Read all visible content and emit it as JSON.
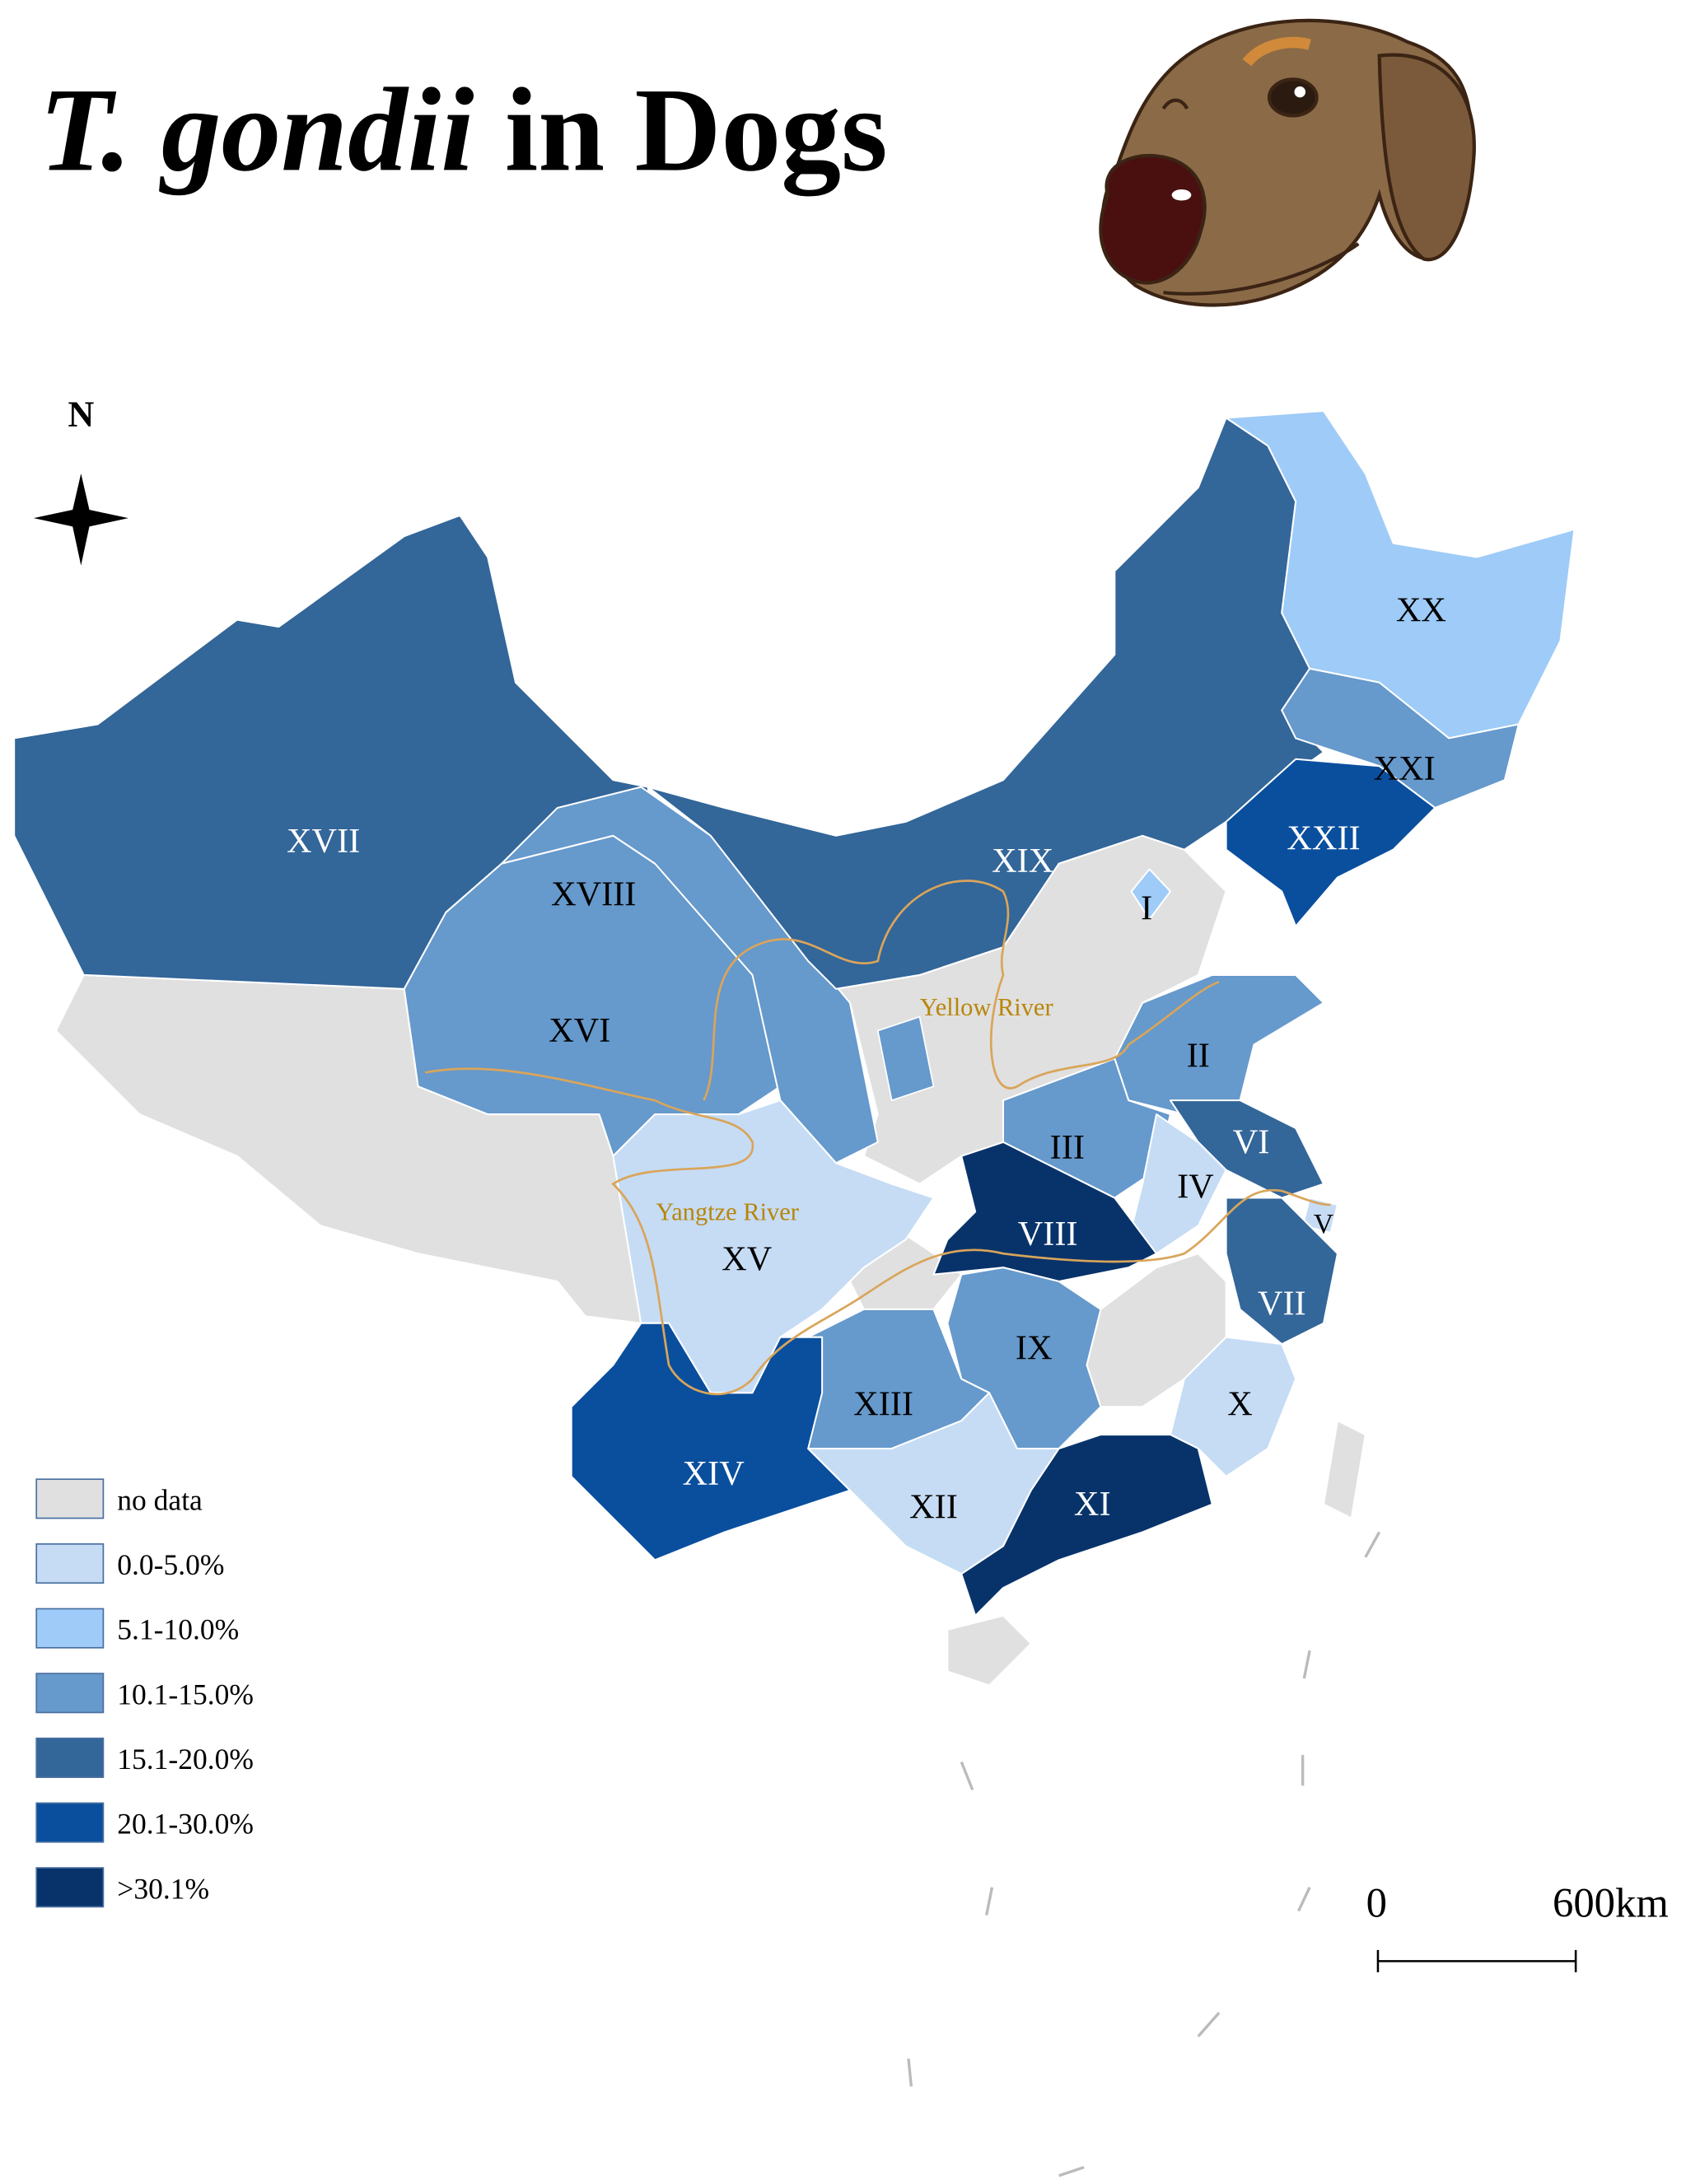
{
  "title": {
    "italic": "T. gondii",
    "plain": "in Dogs"
  },
  "compass": "N",
  "legend": [
    {
      "label": "no data",
      "color": "#e0e0e0"
    },
    {
      "label": "0.0-5.0%",
      "color": "#c6dcf5"
    },
    {
      "label": "5.1-10.0%",
      "color": "#9ecbf7"
    },
    {
      "label": "10.1-15.0%",
      "color": "#6699cc"
    },
    {
      "label": "15.1-20.0%",
      "color": "#336699"
    },
    {
      "label": "20.1-30.0%",
      "color": "#0a4f9e"
    },
    {
      "label": ">30.1%",
      "color": "#08336a"
    }
  ],
  "regions": [
    {
      "label": "XVII",
      "color": "#336699"
    },
    {
      "label": "XVI",
      "color": "#6699cc"
    },
    {
      "label": "XVIII",
      "color": "#6699cc"
    },
    {
      "label": "XIX",
      "color": "#336699"
    },
    {
      "label": "XX",
      "color": "#9ecbf7"
    },
    {
      "label": "XXI",
      "color": "#6699cc"
    },
    {
      "label": "XXII",
      "color": "#0a4f9e"
    },
    {
      "label": "I",
      "color": "#9ecbf7"
    },
    {
      "label": "II",
      "color": "#6699cc"
    },
    {
      "label": "III",
      "color": "#6699cc"
    },
    {
      "label": "VI",
      "color": "#336699"
    },
    {
      "label": "IV",
      "color": "#c6dcf5"
    },
    {
      "label": "V",
      "color": "#c6dcf5"
    },
    {
      "label": "VII",
      "color": "#336699"
    },
    {
      "label": "XV",
      "color": "#c6dcf5"
    },
    {
      "label": "VIII",
      "color": "#08336a"
    },
    {
      "label": "IX",
      "color": "#6699cc"
    },
    {
      "label": "X",
      "color": "#c6dcf5"
    },
    {
      "label": "XIII",
      "color": "#6699cc"
    },
    {
      "label": "XIV",
      "color": "#0a4f9e"
    },
    {
      "label": "XII",
      "color": "#c6dcf5"
    },
    {
      "label": "XI",
      "color": "#08336a"
    }
  ],
  "rivers": [
    "Yellow River",
    "Yangtze River"
  ],
  "scale_bar": {
    "start": "0",
    "end": "600km"
  }
}
